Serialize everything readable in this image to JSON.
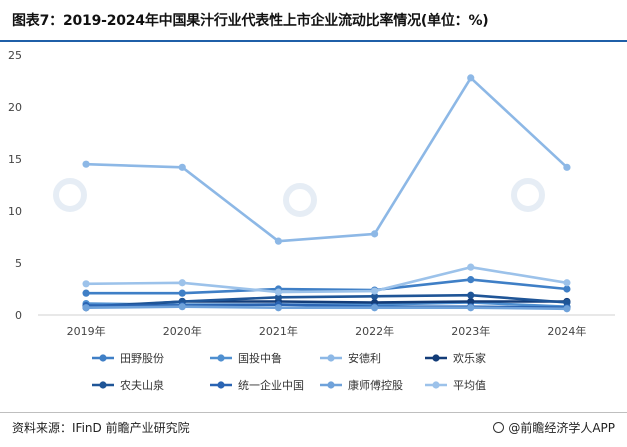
{
  "header": {
    "title": "图表7：2019-2024年中国果汁行业代表性上市企业流动比率情况(单位：%)"
  },
  "footer": {
    "source": "资料来源：IFinD 前瞻产业研究院",
    "brand": "@前瞻经济学人APP"
  },
  "colors": {
    "accent_rule": "#1f5fa8"
  },
  "chart_data": {
    "type": "line",
    "title": "",
    "xlabel": "",
    "ylabel": "",
    "categories": [
      "2019年",
      "2020年",
      "2021年",
      "2022年",
      "2023年",
      "2024年"
    ],
    "ylim": [
      0,
      25
    ],
    "yticks": [
      0,
      5,
      10,
      15,
      20,
      25
    ],
    "grid": false,
    "legend": "bottom",
    "series": [
      {
        "name": "田野股份",
        "color": "#3f7fc6",
        "values": [
          2.1,
          2.1,
          2.5,
          2.4,
          3.4,
          2.5
        ]
      },
      {
        "name": "国投中鲁",
        "color": "#4f8fd0",
        "values": [
          1.1,
          1.0,
          1.0,
          1.0,
          1.2,
          0.8
        ]
      },
      {
        "name": "安德利",
        "color": "#8db8e6",
        "values": [
          14.5,
          14.2,
          7.1,
          7.8,
          22.8,
          14.2
        ]
      },
      {
        "name": "欢乐家",
        "color": "#133c78",
        "values": [
          0.7,
          1.3,
          1.3,
          1.2,
          1.3,
          1.3
        ]
      },
      {
        "name": "农夫山泉",
        "color": "#1f5597",
        "values": [
          0.8,
          1.3,
          1.7,
          1.8,
          1.9,
          1.2
        ]
      },
      {
        "name": "统一企业中国",
        "color": "#2a64b3",
        "values": [
          0.9,
          0.9,
          1.0,
          0.8,
          0.8,
          0.7
        ]
      },
      {
        "name": "康师傅控股",
        "color": "#6fa2da",
        "values": [
          0.7,
          0.8,
          0.7,
          0.7,
          0.7,
          0.6
        ]
      },
      {
        "name": "平均值",
        "color": "#9cc2ea",
        "values": [
          3.0,
          3.1,
          2.2,
          2.3,
          4.6,
          3.1
        ]
      }
    ]
  }
}
